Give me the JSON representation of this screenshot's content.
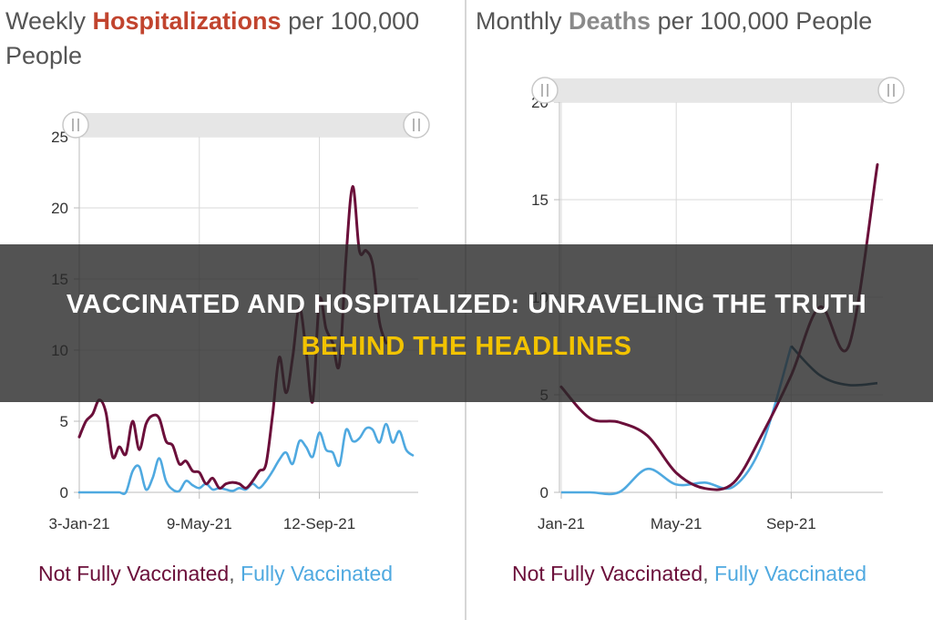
{
  "colors": {
    "not_fully_vaccinated": "#6b0f3a",
    "fully_vaccinated": "#4fa9e0",
    "fully_vaccinated_deaths_late": "#1f4f6e",
    "hospitalizations_highlight": "#c1442e",
    "deaths_highlight": "#8a8a8a",
    "headline_line1": "#ffffff",
    "headline_line2": "#f2c300"
  },
  "headline": {
    "line1": "VACCINATED AND HOSPITALIZED: UNRAVELING THE TRUTH",
    "line2": "BEHIND THE HEADLINES"
  },
  "chart_data": [
    {
      "type": "line",
      "title_parts": {
        "pre": "Weekly ",
        "highlight": "Hospitalizations",
        "post": " per 100,000 People"
      },
      "xlabel": "",
      "ylabel": "",
      "x_range": [
        0,
        50
      ],
      "ylim": [
        0,
        25
      ],
      "yticks": [
        0,
        5,
        10,
        15,
        20,
        25
      ],
      "xticks": [
        {
          "x": 0,
          "label": "3-Jan-21"
        },
        {
          "x": 18,
          "label": "9-May-21"
        },
        {
          "x": 36,
          "label": "12-Sep-21"
        }
      ],
      "grid": true,
      "legend_placement": "bottom",
      "legend": {
        "item1": "Not Fully Vaccinated",
        "separator": ", ",
        "item2": "Fully Vaccinated"
      },
      "series": [
        {
          "name": "Not Fully Vaccinated",
          "points": [
            [
              0,
              3.9
            ],
            [
              1,
              5.0
            ],
            [
              2,
              5.5
            ],
            [
              3,
              6.5
            ],
            [
              4,
              5.6
            ],
            [
              5,
              2.5
            ],
            [
              6,
              3.2
            ],
            [
              7,
              2.7
            ],
            [
              8,
              5.0
            ],
            [
              9,
              3.0
            ],
            [
              10,
              4.8
            ],
            [
              11,
              5.4
            ],
            [
              12,
              5.2
            ],
            [
              13,
              3.6
            ],
            [
              14,
              3.3
            ],
            [
              15,
              2.0
            ],
            [
              16,
              2.2
            ],
            [
              17,
              1.5
            ],
            [
              18,
              1.4
            ],
            [
              19,
              0.6
            ],
            [
              20,
              1.0
            ],
            [
              21,
              0.3
            ],
            [
              22,
              0.6
            ],
            [
              23,
              0.7
            ],
            [
              24,
              0.6
            ],
            [
              25,
              0.3
            ],
            [
              26,
              0.8
            ],
            [
              27,
              1.5
            ],
            [
              28,
              2.0
            ],
            [
              29,
              5.5
            ],
            [
              30,
              9.5
            ],
            [
              31,
              7.0
            ],
            [
              32,
              9.5
            ],
            [
              33,
              13.0
            ],
            [
              34,
              10.0
            ],
            [
              35,
              6.4
            ],
            [
              36,
              13.5
            ],
            [
              37,
              11.5
            ],
            [
              38,
              10.5
            ],
            [
              39,
              9.0
            ],
            [
              40,
              16.5
            ],
            [
              41,
              21.5
            ],
            [
              42,
              17.0
            ],
            [
              43,
              17.0
            ],
            [
              44,
              16.0
            ],
            [
              45,
              12.0
            ],
            [
              46,
              10.5
            ]
          ]
        },
        {
          "name": "Fully Vaccinated",
          "points": [
            [
              0,
              0
            ],
            [
              1,
              0
            ],
            [
              2,
              0
            ],
            [
              3,
              0
            ],
            [
              4,
              0
            ],
            [
              5,
              0
            ],
            [
              6,
              0
            ],
            [
              7,
              0
            ],
            [
              8,
              1.5
            ],
            [
              9,
              1.8
            ],
            [
              10,
              0.2
            ],
            [
              11,
              1.0
            ],
            [
              12,
              2.4
            ],
            [
              13,
              0.8
            ],
            [
              14,
              0.2
            ],
            [
              15,
              0.1
            ],
            [
              16,
              0.8
            ],
            [
              17,
              0.5
            ],
            [
              18,
              0.3
            ],
            [
              19,
              0.6
            ],
            [
              20,
              0.2
            ],
            [
              21,
              0.3
            ],
            [
              22,
              0.2
            ],
            [
              23,
              0.1
            ],
            [
              24,
              0.3
            ],
            [
              25,
              0.2
            ],
            [
              26,
              0.6
            ],
            [
              27,
              0.3
            ],
            [
              28,
              0.8
            ],
            [
              29,
              1.5
            ],
            [
              30,
              2.3
            ],
            [
              31,
              2.8
            ],
            [
              32,
              2.0
            ],
            [
              33,
              3.6
            ],
            [
              34,
              3.2
            ],
            [
              35,
              2.5
            ],
            [
              36,
              4.2
            ],
            [
              37,
              3.0
            ],
            [
              38,
              2.8
            ],
            [
              39,
              1.9
            ],
            [
              40,
              4.4
            ],
            [
              41,
              3.6
            ],
            [
              42,
              3.8
            ],
            [
              43,
              4.5
            ],
            [
              44,
              4.4
            ],
            [
              45,
              3.5
            ],
            [
              46,
              4.8
            ],
            [
              47,
              3.5
            ],
            [
              48,
              4.3
            ],
            [
              49,
              3.0
            ],
            [
              50,
              2.6
            ]
          ]
        }
      ]
    },
    {
      "type": "line",
      "title_parts": {
        "pre": "Monthly ",
        "highlight": "Deaths",
        "post": " per 100,000 People"
      },
      "xlabel": "",
      "ylabel": "",
      "x_range": [
        0,
        11
      ],
      "ylim": [
        0,
        20
      ],
      "yticks": [
        0,
        5,
        10,
        15,
        20
      ],
      "xticks": [
        {
          "x": 0,
          "label": "Jan-21"
        },
        {
          "x": 4,
          "label": "May-21"
        },
        {
          "x": 8,
          "label": "Sep-21"
        }
      ],
      "grid": true,
      "legend_placement": "bottom",
      "legend": {
        "item1": "Not Fully Vaccinated",
        "separator": ", ",
        "item2": "Fully Vaccinated"
      },
      "series": [
        {
          "name": "Not Fully Vaccinated",
          "points": [
            [
              0,
              5.4
            ],
            [
              1,
              3.8
            ],
            [
              2,
              3.6
            ],
            [
              3,
              2.9
            ],
            [
              4,
              1.0
            ],
            [
              5,
              0.2
            ],
            [
              6,
              0.5
            ],
            [
              7,
              3.0
            ],
            [
              8,
              6.0
            ],
            [
              9,
              9.5
            ],
            [
              10,
              7.5
            ],
            [
              11,
              16.8
            ]
          ]
        },
        {
          "name": "Fully Vaccinated",
          "points": [
            [
              0,
              0
            ],
            [
              1,
              0
            ],
            [
              2,
              0
            ],
            [
              3,
              1.2
            ],
            [
              4,
              0.4
            ],
            [
              5,
              0.5
            ],
            [
              6,
              0.3
            ],
            [
              7,
              2.5
            ],
            [
              8,
              7.5
            ],
            [
              9,
              6.0
            ],
            [
              10,
              5.5
            ],
            [
              11,
              5.6
            ]
          ]
        }
      ]
    }
  ]
}
